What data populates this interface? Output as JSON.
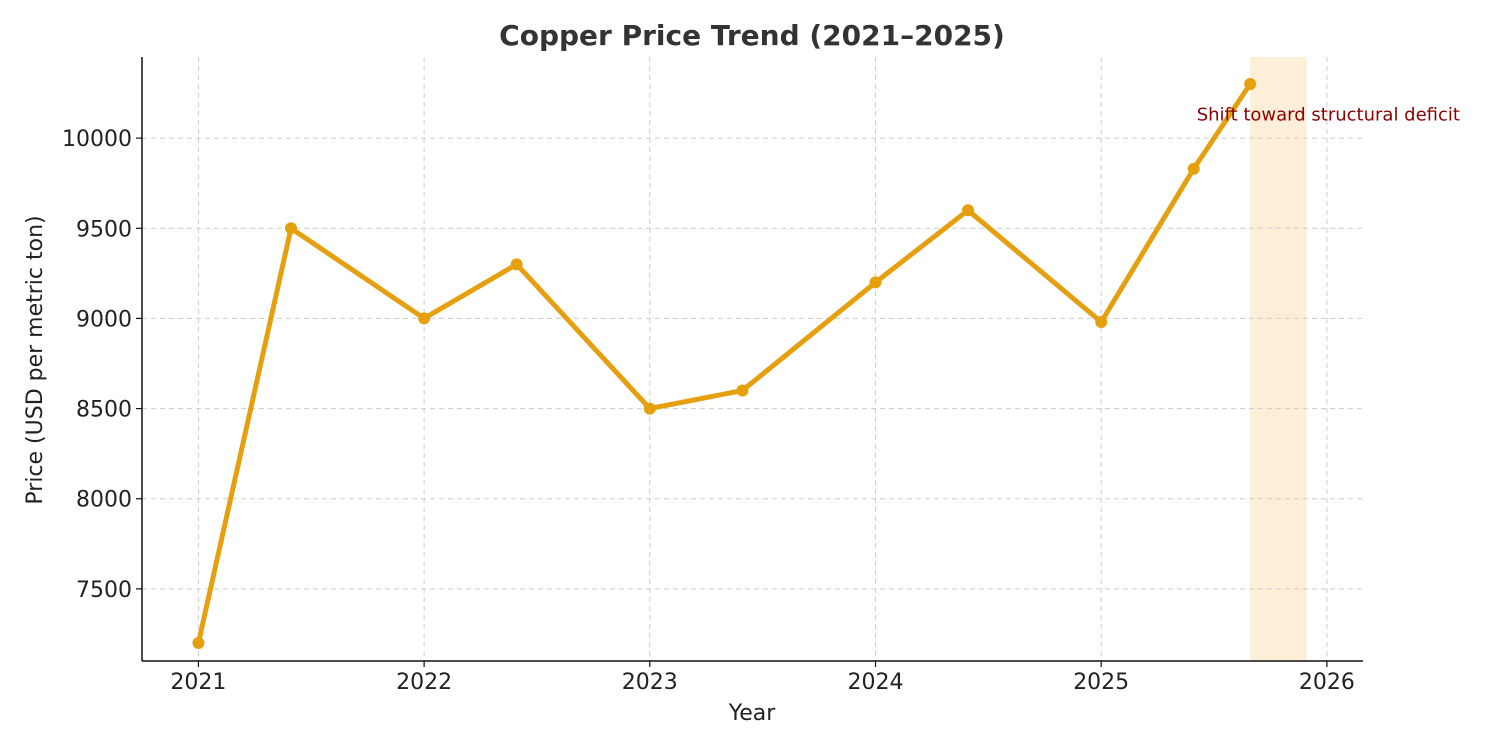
{
  "chart_data": {
    "type": "line",
    "title": "Copper Price Trend (2021–2025)",
    "xlabel": "Year",
    "ylabel": "Price (USD per metric ton)",
    "xlim": [
      2020.75,
      2026.16
    ],
    "ylim": [
      7100,
      10450
    ],
    "x_ticks": [
      2021,
      2022,
      2023,
      2024,
      2025,
      2026
    ],
    "y_ticks": [
      7500,
      8000,
      8500,
      9000,
      9500,
      10000
    ],
    "grid": true,
    "series": [
      {
        "color": "#e6a00f",
        "points": [
          {
            "x": 2021.0,
            "y": 7200
          },
          {
            "x": 2021.41,
            "y": 9500
          },
          {
            "x": 2022.0,
            "y": 9000
          },
          {
            "x": 2022.41,
            "y": 9300
          },
          {
            "x": 2023.0,
            "y": 8500
          },
          {
            "x": 2023.41,
            "y": 8600
          },
          {
            "x": 2024.0,
            "y": 9200
          },
          {
            "x": 2024.41,
            "y": 9600
          },
          {
            "x": 2025.0,
            "y": 8980
          },
          {
            "x": 2025.41,
            "y": 9830
          },
          {
            "x": 2025.66,
            "y": 10300
          }
        ]
      }
    ],
    "highlight": {
      "x_start": 2025.66,
      "x_end": 2025.91,
      "color": "#fdebd0"
    },
    "annotation": {
      "text": "Shift toward structural deficit",
      "x": 2025.41,
      "y": 10130,
      "color": "#8b0000"
    }
  }
}
